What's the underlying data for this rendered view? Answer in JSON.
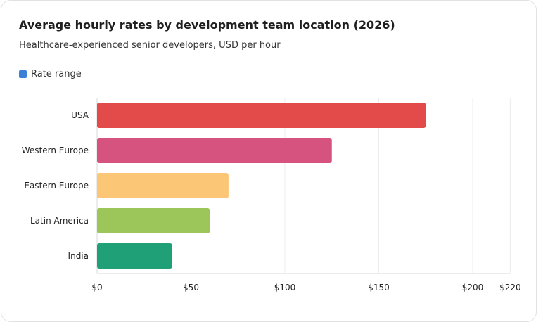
{
  "chart_data": {
    "type": "bar",
    "orientation": "horizontal",
    "title": "Average hourly rates by development team location (2026)",
    "subtitle": "Healthcare-experienced senior developers, USD per hour",
    "legend": {
      "label": "Rate range",
      "color": "#3b82d6",
      "placement": "top-left"
    },
    "categories": [
      "USA",
      "Western Europe",
      "Eastern Europe",
      "Latin America",
      "India"
    ],
    "series": [
      {
        "name": "Rate range",
        "values": [
          175,
          125,
          70,
          60,
          40
        ]
      }
    ],
    "colors": [
      "#e34a4a",
      "#d6537f",
      "#fbc676",
      "#9dc65a",
      "#1fa076"
    ],
    "xlim": [
      0,
      220
    ],
    "xticks": [
      0,
      50,
      100,
      150,
      200,
      220
    ],
    "xtick_labels": [
      "$0",
      "$50",
      "$100",
      "$150",
      "$200",
      "$220"
    ],
    "grid": true
  }
}
